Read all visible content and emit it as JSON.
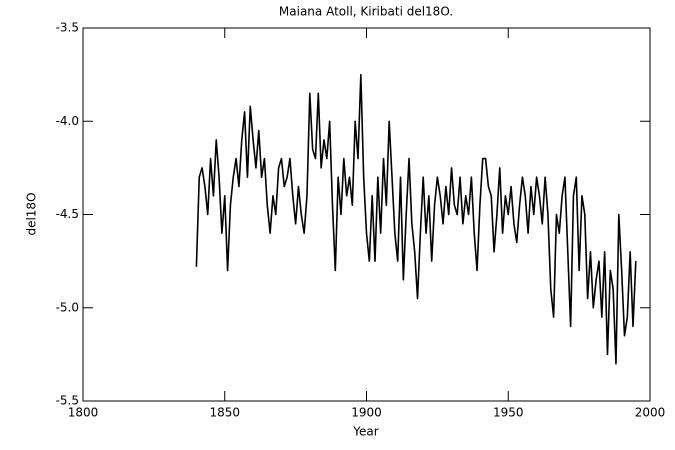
{
  "chart_data": {
    "type": "line",
    "title": "Maiana Atoll, Kiribati del18O.",
    "xlabel": "Year",
    "ylabel": "del18O",
    "xlim": [
      1800,
      2000
    ],
    "xticks": [
      1800,
      1850,
      1900,
      1950,
      2000
    ],
    "ylim": [
      -5.5,
      -3.5
    ],
    "yticks": [
      -3.5,
      {
        "value": -4,
        "label": "-4.0"
      },
      -4.5,
      {
        "value": -5,
        "label": "-5.0"
      },
      -5.5
    ],
    "series": [
      {
        "color": "#000000",
        "x": [
          1840,
          1841,
          1842,
          1843,
          1844,
          1845,
          1846,
          1847,
          1848,
          1849,
          1850,
          1851,
          1852,
          1853,
          1854,
          1855,
          1856,
          1857,
          1858,
          1859,
          1860,
          1861,
          1862,
          1863,
          1864,
          1865,
          1866,
          1867,
          1868,
          1869,
          1870,
          1871,
          1872,
          1873,
          1874,
          1875,
          1876,
          1877,
          1878,
          1879,
          1880,
          1881,
          1882,
          1883,
          1884,
          1885,
          1886,
          1887,
          1888,
          1889,
          1890,
          1891,
          1892,
          1893,
          1894,
          1895,
          1896,
          1897,
          1898,
          1899,
          1900,
          1901,
          1902,
          1903,
          1904,
          1905,
          1906,
          1907,
          1908,
          1909,
          1910,
          1911,
          1912,
          1913,
          1914,
          1915,
          1916,
          1917,
          1918,
          1919,
          1920,
          1921,
          1922,
          1923,
          1924,
          1925,
          1926,
          1927,
          1928,
          1929,
          1930,
          1931,
          1932,
          1933,
          1934,
          1935,
          1936,
          1937,
          1938,
          1939,
          1940,
          1941,
          1942,
          1943,
          1944,
          1945,
          1946,
          1947,
          1948,
          1949,
          1950,
          1951,
          1952,
          1953,
          1954,
          1955,
          1956,
          1957,
          1958,
          1959,
          1960,
          1961,
          1962,
          1963,
          1964,
          1965,
          1966,
          1967,
          1968,
          1969,
          1970,
          1971,
          1972,
          1973,
          1974,
          1975,
          1976,
          1977,
          1978,
          1979,
          1980,
          1981,
          1982,
          1983,
          1984,
          1985,
          1986,
          1987,
          1988,
          1989,
          1990,
          1991,
          1992,
          1993,
          1994,
          1995
        ],
        "values": [
          -4.78,
          -4.3,
          -4.25,
          -4.35,
          -4.5,
          -4.2,
          -4.4,
          -4.1,
          -4.3,
          -4.6,
          -4.4,
          -4.8,
          -4.45,
          -4.3,
          -4.2,
          -4.35,
          -4.1,
          -3.95,
          -4.3,
          -3.92,
          -4.1,
          -4.25,
          -4.05,
          -4.3,
          -4.2,
          -4.45,
          -4.6,
          -4.4,
          -4.5,
          -4.25,
          -4.2,
          -4.35,
          -4.3,
          -4.2,
          -4.4,
          -4.55,
          -4.35,
          -4.5,
          -4.6,
          -4.4,
          -3.85,
          -4.15,
          -4.2,
          -3.85,
          -4.25,
          -4.1,
          -4.2,
          -4.0,
          -4.45,
          -4.8,
          -4.3,
          -4.5,
          -4.2,
          -4.4,
          -4.3,
          -4.45,
          -4.0,
          -4.2,
          -3.75,
          -4.3,
          -4.6,
          -4.75,
          -4.4,
          -4.75,
          -4.3,
          -4.6,
          -4.2,
          -4.45,
          -4.0,
          -4.3,
          -4.6,
          -4.75,
          -4.3,
          -4.85,
          -4.5,
          -4.2,
          -4.55,
          -4.7,
          -4.95,
          -4.6,
          -4.3,
          -4.6,
          -4.4,
          -4.75,
          -4.45,
          -4.3,
          -4.4,
          -4.55,
          -4.35,
          -4.5,
          -4.25,
          -4.45,
          -4.5,
          -4.3,
          -4.55,
          -4.4,
          -4.5,
          -4.3,
          -4.6,
          -4.8,
          -4.45,
          -4.2,
          -4.2,
          -4.35,
          -4.4,
          -4.7,
          -4.5,
          -4.25,
          -4.6,
          -4.4,
          -4.5,
          -4.35,
          -4.55,
          -4.65,
          -4.45,
          -4.3,
          -4.4,
          -4.6,
          -4.35,
          -4.5,
          -4.3,
          -4.4,
          -4.55,
          -4.3,
          -4.5,
          -4.9,
          -5.05,
          -4.5,
          -4.6,
          -4.4,
          -4.3,
          -4.7,
          -5.1,
          -4.4,
          -4.3,
          -4.8,
          -4.4,
          -4.5,
          -4.95,
          -4.7,
          -5.0,
          -4.85,
          -4.75,
          -5.05,
          -4.7,
          -5.25,
          -4.8,
          -4.9,
          -5.3,
          -4.5,
          -4.8,
          -5.15,
          -5.05,
          -4.7,
          -5.1,
          -4.75
        ]
      }
    ]
  }
}
